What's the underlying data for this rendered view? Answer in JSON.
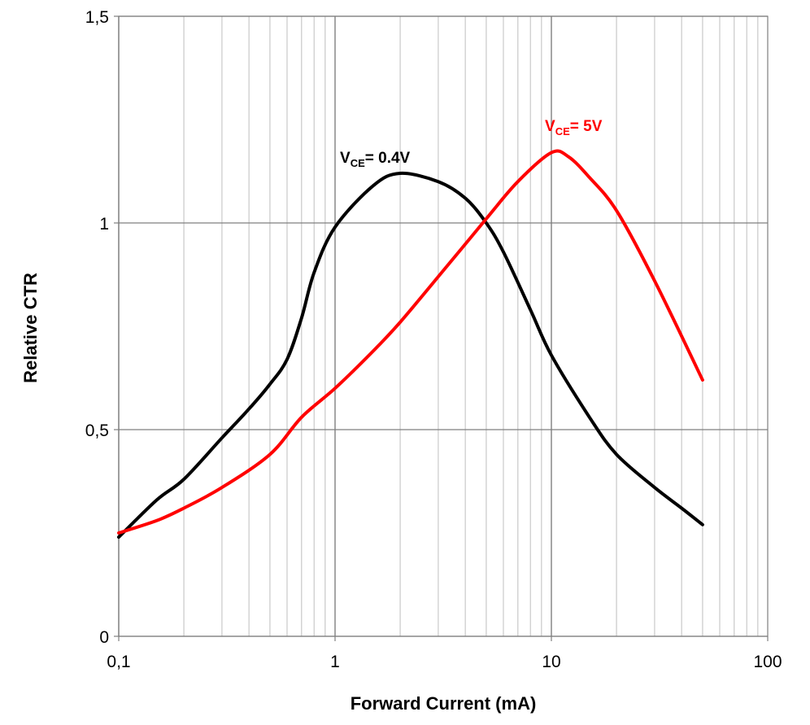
{
  "chart_data": {
    "type": "line",
    "xlabel": "Forward Current (mA)",
    "ylabel": "Relative CTR",
    "x_scale": "log",
    "xlim": [
      0.1,
      100
    ],
    "ylim": [
      0,
      1.5
    ],
    "x_ticks": [
      "0,1",
      "1",
      "10",
      "100"
    ],
    "y_ticks": [
      "0",
      "0,5",
      "1",
      "1,5"
    ],
    "grid": true,
    "series": [
      {
        "label_main": "V",
        "label_sub": "CE",
        "label_rest": "= 0.4V",
        "color": "#000000",
        "x": [
          0.1,
          0.15,
          0.2,
          0.3,
          0.4,
          0.5,
          0.6,
          0.7,
          0.8,
          1,
          1.5,
          2,
          3,
          4,
          5,
          6,
          8,
          10,
          15,
          20,
          30,
          40,
          50
        ],
        "y": [
          0.24,
          0.33,
          0.38,
          0.48,
          0.55,
          0.61,
          0.67,
          0.77,
          0.88,
          0.99,
          1.09,
          1.12,
          1.1,
          1.06,
          1.0,
          0.93,
          0.79,
          0.68,
          0.53,
          0.44,
          0.36,
          0.31,
          0.27
        ]
      },
      {
        "label_main": "V",
        "label_sub": "CE",
        "label_rest": "= 5V",
        "color": "#ff0000",
        "x": [
          0.1,
          0.15,
          0.2,
          0.3,
          0.5,
          0.7,
          1,
          1.5,
          2,
          3,
          5,
          7,
          10,
          12,
          15,
          20,
          30,
          50
        ],
        "y": [
          0.25,
          0.28,
          0.31,
          0.36,
          0.44,
          0.53,
          0.6,
          0.69,
          0.76,
          0.87,
          1.01,
          1.1,
          1.17,
          1.16,
          1.11,
          1.03,
          0.86,
          0.62
        ]
      }
    ]
  }
}
